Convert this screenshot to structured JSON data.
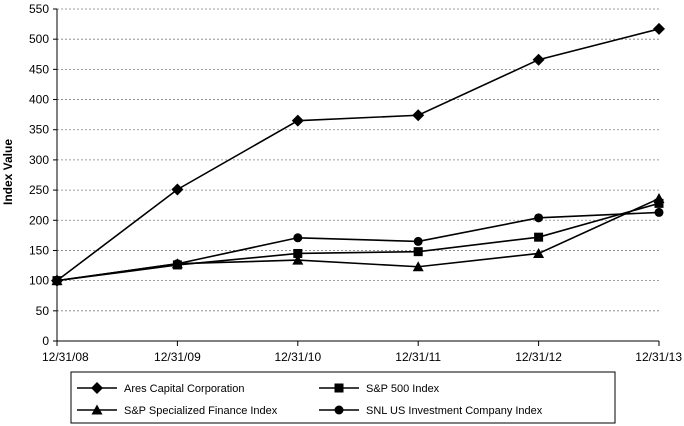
{
  "chart_data": {
    "type": "line",
    "title": "",
    "xlabel": "",
    "ylabel": "Index Value",
    "categories": [
      "12/31/08",
      "12/31/09",
      "12/31/10",
      "12/31/11",
      "12/31/12",
      "12/31/13"
    ],
    "ylim": [
      0,
      550
    ],
    "yticks": [
      "0",
      "50",
      "100",
      "150",
      "200",
      "250",
      "300",
      "350",
      "400",
      "450",
      "500",
      "550"
    ],
    "grid": true,
    "legend_position": "bottom",
    "series": [
      {
        "name": "Ares Capital Corporation",
        "marker": "diamond",
        "values": [
          100,
          251,
          365,
          374,
          466,
          517
        ]
      },
      {
        "name": "S&P 500 Index",
        "marker": "square",
        "values": [
          100,
          126,
          145,
          148,
          172,
          228
        ]
      },
      {
        "name": "S&P Specialized Finance Index",
        "marker": "triangle",
        "values": [
          100,
          128,
          134,
          123,
          145,
          236
        ]
      },
      {
        "name": "SNL US Investment Company Index",
        "marker": "circle",
        "values": [
          100,
          128,
          171,
          165,
          204,
          213
        ]
      }
    ]
  }
}
